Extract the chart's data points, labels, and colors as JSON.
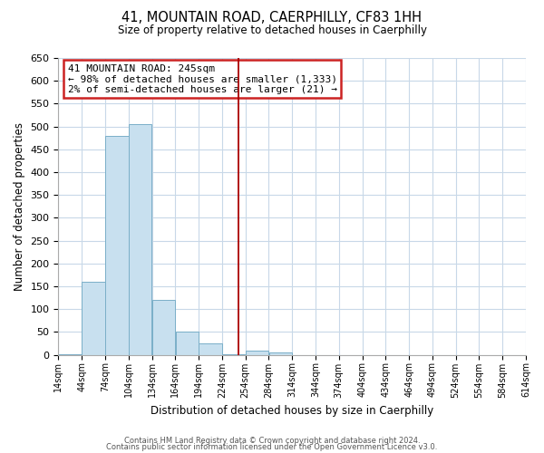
{
  "title": "41, MOUNTAIN ROAD, CAERPHILLY, CF83 1HH",
  "subtitle": "Size of property relative to detached houses in Caerphilly",
  "xlabel": "Distribution of detached houses by size in Caerphilly",
  "ylabel": "Number of detached properties",
  "bin_edges": [
    14,
    44,
    74,
    104,
    134,
    164,
    194,
    224,
    254,
    284,
    314,
    344,
    374,
    404,
    434,
    464,
    494,
    524,
    554,
    584,
    614
  ],
  "bar_heights": [
    2,
    160,
    480,
    505,
    120,
    50,
    25,
    2,
    10,
    5,
    0,
    0,
    0,
    0,
    0,
    0,
    0,
    0,
    0,
    0
  ],
  "bar_color": "#c8e0ef",
  "bar_edge_color": "#7aafc8",
  "property_line_x": 245,
  "property_line_color": "#aa0000",
  "ylim": [
    0,
    650
  ],
  "yticks": [
    0,
    50,
    100,
    150,
    200,
    250,
    300,
    350,
    400,
    450,
    500,
    550,
    600,
    650
  ],
  "tick_labels": [
    "14sqm",
    "44sqm",
    "74sqm",
    "104sqm",
    "134sqm",
    "164sqm",
    "194sqm",
    "224sqm",
    "254sqm",
    "284sqm",
    "314sqm",
    "344sqm",
    "374sqm",
    "404sqm",
    "434sqm",
    "464sqm",
    "494sqm",
    "524sqm",
    "554sqm",
    "584sqm",
    "614sqm"
  ],
  "annotation_title": "41 MOUNTAIN ROAD: 245sqm",
  "annotation_line1": "← 98% of detached houses are smaller (1,333)",
  "annotation_line2": "2% of semi-detached houses are larger (21) →",
  "footer_line1": "Contains HM Land Registry data © Crown copyright and database right 2024.",
  "footer_line2": "Contains public sector information licensed under the Open Government Licence v3.0.",
  "background_color": "#ffffff",
  "grid_color": "#c8d8e8"
}
